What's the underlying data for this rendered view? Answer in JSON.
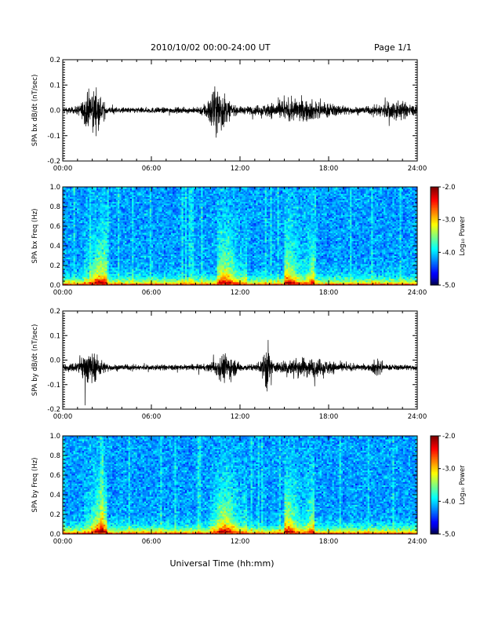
{
  "header": {
    "title": "2010/10/02  00:00-24:00 UT",
    "page": "Page 1/1"
  },
  "chart_data": [
    {
      "type": "line",
      "ylabel": "SPA bx dB/dt (nT/sec)",
      "xlim": [
        "00:00",
        "24:00"
      ],
      "ylim": [
        -0.2,
        0.2
      ],
      "x_ticks": [
        "00:00",
        "06:00",
        "12:00",
        "18:00",
        "24:00"
      ],
      "y_ticks": [
        "-0.2",
        "-0.1",
        "0.0",
        "0.1",
        "0.2"
      ],
      "baseline": 0.0,
      "activity_windows_hours": [
        {
          "center": 2.0,
          "width": 1.6,
          "amplitude": 0.075
        },
        {
          "center": 10.5,
          "width": 1.8,
          "amplitude": 0.085
        },
        {
          "center": 16.0,
          "width": 6.0,
          "amplitude": 0.035
        },
        {
          "center": 22.5,
          "width": 3.0,
          "amplitude": 0.03
        }
      ],
      "background_amplitude": 0.012
    },
    {
      "type": "heatmap",
      "ylabel": "SPA bx Freq (Hz)",
      "xlim": [
        "00:00",
        "24:00"
      ],
      "ylim": [
        0.0,
        1.0
      ],
      "x_ticks": [
        "00:00",
        "06:00",
        "12:00",
        "18:00",
        "24:00"
      ],
      "y_ticks": [
        "0.0",
        "0.2",
        "0.4",
        "0.6",
        "0.8",
        "1.0"
      ],
      "colorbar": {
        "label": "Log₁₀ Power",
        "range": [
          -5.0,
          -2.0
        ],
        "ticks": [
          "-2.0",
          "-3.0",
          "-4.0",
          "-5.0"
        ]
      },
      "enhanced_intervals_hours": [
        [
          1.5,
          3.0
        ],
        [
          10.5,
          12.5
        ],
        [
          15.0,
          17.0
        ]
      ]
    },
    {
      "type": "line",
      "ylabel": "SPA by dB/dt (nT/sec)",
      "xlim": [
        "00:00",
        "24:00"
      ],
      "ylim": [
        -0.2,
        0.2
      ],
      "x_ticks": [
        "00:00",
        "06:00",
        "12:00",
        "18:00",
        "24:00"
      ],
      "y_ticks": [
        "-0.2",
        "-0.1",
        "0.0",
        "0.1",
        "0.2"
      ],
      "baseline": -0.03,
      "activity_windows_hours": [
        {
          "center": 1.8,
          "width": 2.0,
          "amplitude": 0.06
        },
        {
          "center": 11.0,
          "width": 1.8,
          "amplitude": 0.05
        },
        {
          "center": 13.8,
          "width": 0.6,
          "amplitude": 0.1
        },
        {
          "center": 16.5,
          "width": 5.0,
          "amplitude": 0.03
        },
        {
          "center": 21.3,
          "width": 0.8,
          "amplitude": 0.03
        }
      ],
      "background_amplitude": 0.012
    },
    {
      "type": "heatmap",
      "ylabel": "SPA by Freq (Hz)",
      "xlim": [
        "00:00",
        "24:00"
      ],
      "ylim": [
        0.0,
        1.0
      ],
      "x_ticks": [
        "00:00",
        "06:00",
        "12:00",
        "18:00",
        "24:00"
      ],
      "y_ticks": [
        "0.0",
        "0.2",
        "0.4",
        "0.6",
        "0.8",
        "1.0"
      ],
      "colorbar": {
        "label": "Log₁₀ Power",
        "range": [
          -5.0,
          -2.0
        ],
        "ticks": [
          "-2.0",
          "-3.0",
          "-4.0",
          "-5.0"
        ]
      },
      "enhanced_intervals_hours": [
        [
          1.5,
          3.0
        ],
        [
          10.0,
          12.5
        ],
        [
          15.0,
          17.0
        ]
      ]
    }
  ],
  "xlabel": "Universal Time (hh:mm)"
}
